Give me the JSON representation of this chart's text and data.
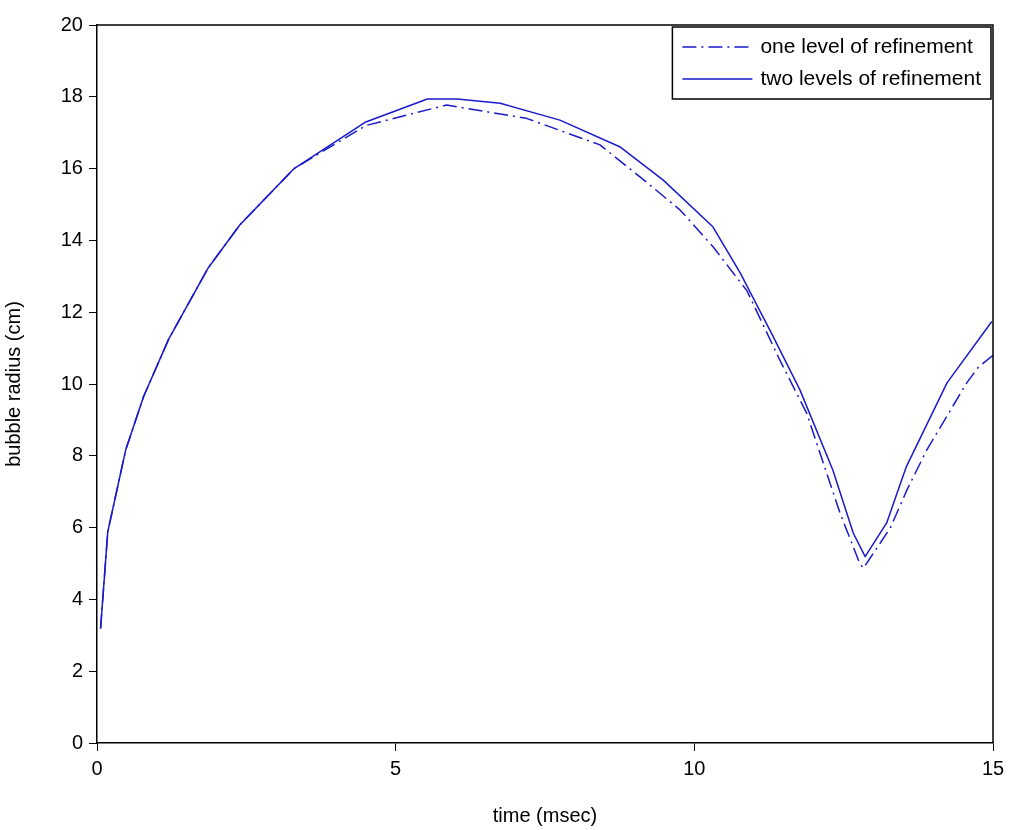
{
  "chart_data": {
    "type": "line",
    "xlabel": "time (msec)",
    "ylabel": "bubble radius (cm)",
    "xlim": [
      0,
      15
    ],
    "ylim": [
      0,
      20
    ],
    "xticks": [
      0,
      5,
      10,
      15
    ],
    "yticks": [
      0,
      2,
      4,
      6,
      8,
      10,
      12,
      14,
      16,
      18,
      20
    ],
    "legend": "top right",
    "marker": "none",
    "series": [
      {
        "name": "one level of refinement",
        "color": "#1a1acc",
        "line_style": "dashed",
        "x": [
          0.06,
          0.18,
          0.48,
          0.78,
          1.2,
          1.86,
          2.39,
          3.3,
          4.5,
          5.85,
          7.19,
          8.42,
          9.09,
          9.76,
          10.31,
          10.88,
          11.43,
          11.88,
          12.44,
          12.77,
          12.83,
          13.28,
          13.56,
          13.89,
          14.56,
          14.76,
          15
        ],
        "values": [
          3.19,
          5.88,
          8.16,
          9.65,
          11.25,
          13.23,
          14.43,
          16.0,
          17.2,
          17.77,
          17.4,
          16.66,
          15.77,
          14.85,
          13.83,
          12.6,
          10.67,
          9.19,
          6.4,
          5.0,
          4.87,
          5.99,
          7.05,
          8.16,
          10.03,
          10.48,
          10.8
        ]
      },
      {
        "name": "two levels of refinement",
        "color": "#1a1acc",
        "line_style": "solid",
        "x": [
          0.06,
          0.18,
          0.48,
          0.78,
          1.2,
          1.86,
          2.39,
          3.3,
          4.5,
          5.53,
          6.03,
          6.75,
          7.75,
          8.75,
          9.48,
          10.31,
          10.77,
          11.32,
          11.77,
          12.32,
          12.66,
          12.86,
          13.22,
          13.55,
          14.23,
          14.98
        ],
        "values": [
          3.19,
          5.88,
          8.16,
          9.65,
          11.25,
          13.23,
          14.43,
          16.0,
          17.3,
          17.94,
          17.94,
          17.82,
          17.35,
          16.61,
          15.68,
          14.38,
          13.09,
          11.32,
          9.83,
          7.6,
          5.85,
          5.19,
          6.13,
          7.7,
          10.03,
          11.74
        ]
      }
    ]
  }
}
